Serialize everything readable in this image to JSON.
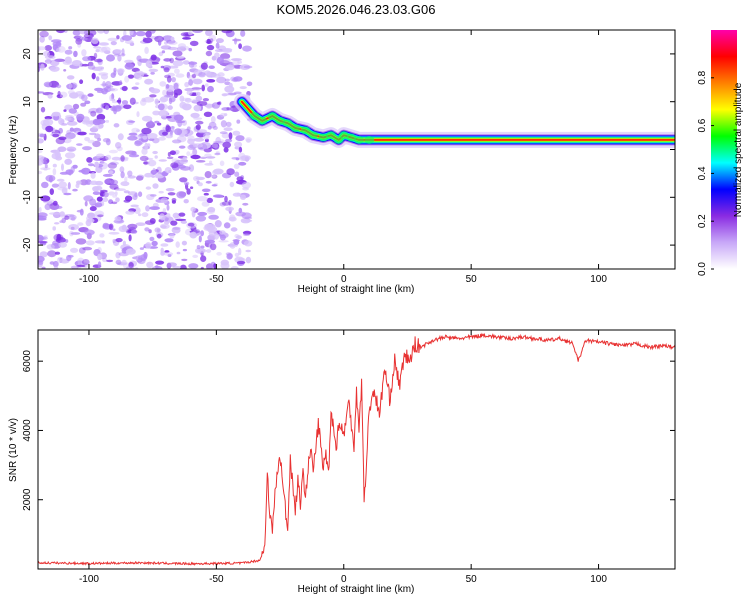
{
  "figure_title": "KOM5.2026.046.23.03.G06",
  "colors": {
    "snr_line": "#e83232",
    "speckle_light": "#d8c4fb",
    "speckle_mid": "#b389f7",
    "speckle_dark": "#7d2fe6",
    "axis": "#000000"
  },
  "chart_data": [
    {
      "type": "heatmap",
      "title": "",
      "xlabel": "Height of straight line (km)",
      "ylabel": "Frequency (Hz)",
      "xlim": [
        -120,
        130
      ],
      "ylim": [
        -25,
        25
      ],
      "xticks": [
        -100,
        -50,
        0,
        50,
        100
      ],
      "yticks": [
        -20,
        -10,
        0,
        10,
        20
      ],
      "colorbar": {
        "label": "Normalized spectral amplitude",
        "range": [
          0,
          1
        ],
        "ticks": [
          0.0,
          0.2,
          0.4,
          0.6,
          0.8
        ],
        "colormap": [
          "#ffffff",
          "#c8a8f8",
          "#8a2be2",
          "#0000ff",
          "#00ffff",
          "#00ff00",
          "#ffff00",
          "#ff8000",
          "#ff0000",
          "#ff00aa"
        ]
      },
      "regions": [
        {
          "name": "noise",
          "x_range": [
            -120,
            -37
          ],
          "freq_range": [
            -25,
            25
          ],
          "amplitude": [
            0.02,
            0.3
          ]
        },
        {
          "name": "signal",
          "x_range": [
            -37,
            130
          ],
          "center_freq_hz": 2,
          "peak_amplitude": 1.0
        }
      ],
      "signal_trace": {
        "x": [
          -40,
          -35,
          -32,
          -28,
          -25,
          -22,
          -19,
          -15,
          -12,
          -8,
          -5,
          -2,
          0,
          3,
          6,
          10,
          20,
          40,
          60,
          80,
          100,
          120,
          130
        ],
        "freq": [
          10,
          7,
          6,
          7,
          6,
          5.5,
          4.5,
          4,
          3,
          2.5,
          3,
          2,
          3,
          2.5,
          2,
          2,
          2,
          2,
          2,
          2,
          2,
          2,
          2
        ]
      }
    },
    {
      "type": "line",
      "title": "",
      "xlabel": "Height of straight line (km)",
      "ylabel": "SNR (10 * v/v)",
      "xlim": [
        -120,
        130
      ],
      "ylim": [
        0,
        6900
      ],
      "xticks": [
        -100,
        -50,
        0,
        50,
        100
      ],
      "yticks": [
        2000,
        4000,
        6000
      ],
      "series": [
        {
          "name": "SNR",
          "x": [
            -120,
            -100,
            -80,
            -60,
            -40,
            -33,
            -31,
            -30,
            -29,
            -28,
            -27,
            -25,
            -24,
            -22,
            -21,
            -19,
            -18,
            -17,
            -16,
            -15,
            -13,
            -12,
            -10,
            -8,
            -7,
            -6,
            -5,
            -3,
            -2,
            0,
            2,
            4,
            5,
            6,
            7,
            8,
            10,
            12,
            14,
            16,
            18,
            20,
            22,
            24,
            26,
            28,
            30,
            35,
            40,
            45,
            50,
            55,
            60,
            65,
            70,
            75,
            80,
            85,
            90,
            92,
            95,
            100,
            105,
            110,
            115,
            120,
            125,
            130
          ],
          "y": [
            180,
            160,
            180,
            150,
            170,
            250,
            600,
            2900,
            1500,
            1100,
            2200,
            3300,
            2500,
            1100,
            3200,
            1700,
            2600,
            1900,
            2700,
            2200,
            3500,
            2800,
            4200,
            2900,
            3400,
            2700,
            4600,
            3500,
            4200,
            3900,
            4800,
            3600,
            5100,
            4100,
            5400,
            1900,
            4600,
            5200,
            4400,
            5800,
            4900,
            6000,
            5300,
            6200,
            6000,
            6500,
            6400,
            6600,
            6700,
            6650,
            6700,
            6750,
            6700,
            6650,
            6700,
            6650,
            6600,
            6650,
            6500,
            6000,
            6600,
            6550,
            6500,
            6450,
            6500,
            6400,
            6450,
            6400
          ]
        }
      ]
    }
  ]
}
